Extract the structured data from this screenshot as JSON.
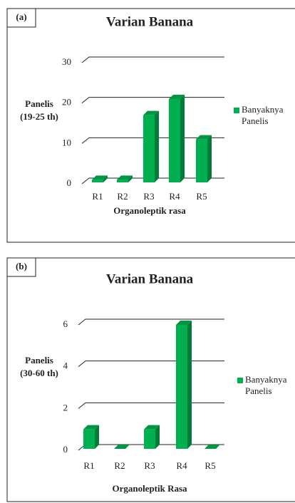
{
  "chart_data": [
    {
      "type": "bar",
      "panel_label": "(a)",
      "title": "Varian Banana",
      "y_label": [
        "Panelis",
        "(19-25 th)"
      ],
      "x_label": "Organoleptik rasa",
      "categories": [
        "R1",
        "R2",
        "R3",
        "R4",
        "R5"
      ],
      "series": [
        {
          "name": "Banyaknya Panelis",
          "color": "#00b050",
          "values": [
            1,
            1,
            17,
            21,
            11
          ]
        }
      ],
      "ylim": [
        0,
        30
      ],
      "yticks": [
        0,
        10,
        20,
        30
      ],
      "grid": true,
      "legend": "right"
    },
    {
      "type": "bar",
      "panel_label": "(b)",
      "title": "Varian Banana",
      "y_label": [
        "Panelis",
        "(30-60 th)"
      ],
      "x_label": "Organoleptik Rasa",
      "categories": [
        "R1",
        "R2",
        "R3",
        "R4",
        "R5"
      ],
      "series": [
        {
          "name": "Banyaknya Panelis",
          "color": "#00b050",
          "values": [
            1,
            0,
            1,
            6,
            0
          ]
        }
      ],
      "ylim": [
        0,
        6
      ],
      "yticks": [
        0,
        2,
        4,
        6
      ],
      "grid": true,
      "legend": "right"
    }
  ]
}
